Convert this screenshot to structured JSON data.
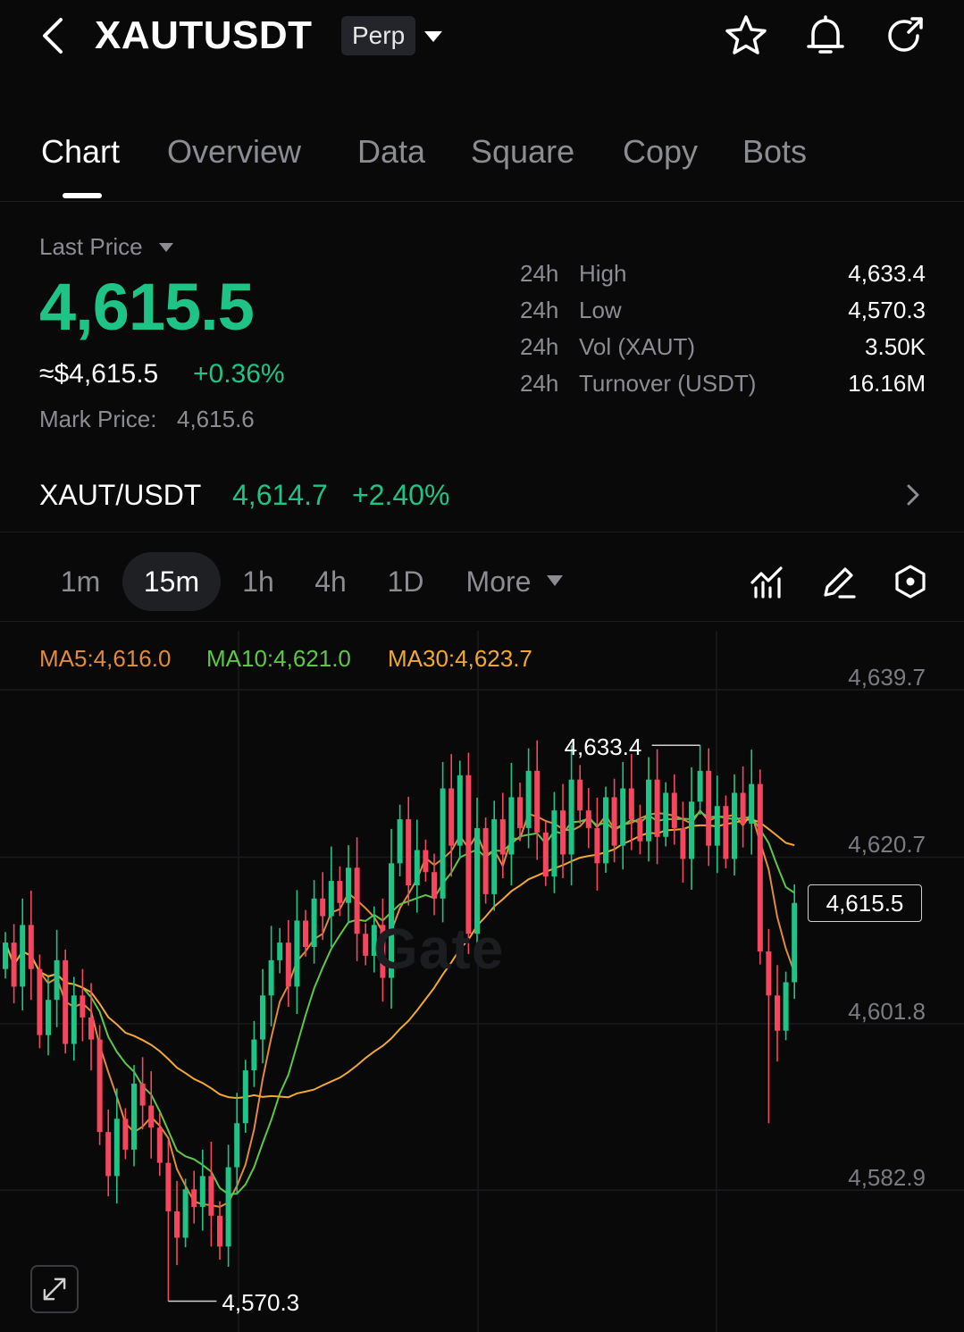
{
  "header": {
    "symbol": "XAUTUSDT",
    "badge": "Perp",
    "icons": [
      "back-icon",
      "chevron-down-icon",
      "star-icon",
      "bell-icon",
      "share-icon"
    ]
  },
  "tabs": [
    {
      "label": "Chart",
      "active": true
    },
    {
      "label": "Overview",
      "active": false
    },
    {
      "label": "Data",
      "active": false
    },
    {
      "label": "Square",
      "active": false
    },
    {
      "label": "Copy",
      "active": false
    },
    {
      "label": "Bots",
      "active": false
    }
  ],
  "price": {
    "label": "Last Price",
    "last": "4,615.5",
    "approx": "≈$4,615.5",
    "change": "+0.36%",
    "mark_label": "Mark Price:",
    "mark_value": "4,615.6"
  },
  "stats": [
    {
      "period": "24h",
      "name": "High",
      "value": "4,633.4"
    },
    {
      "period": "24h",
      "name": "Low",
      "value": "4,570.3"
    },
    {
      "period": "24h",
      "name": "Vol (XAUT)",
      "value": "3.50K"
    },
    {
      "period": "24h",
      "name": "Turnover (USDT)",
      "value": "16.16M"
    }
  ],
  "spot": {
    "symbol": "XAUT/USDT",
    "price": "4,614.7",
    "change": "+2.40%"
  },
  "intervals": [
    {
      "label": "1m",
      "active": false
    },
    {
      "label": "15m",
      "active": true
    },
    {
      "label": "1h",
      "active": false
    },
    {
      "label": "4h",
      "active": false
    },
    {
      "label": "1D",
      "active": false
    },
    {
      "label": "More",
      "active": false
    }
  ],
  "colors": {
    "up": "#1ec485",
    "down": "#f6465d",
    "ma5": "#e08a3c",
    "ma10": "#5ec746",
    "ma30": "#f0a835",
    "background": "#09090a"
  },
  "watermark": "Gate",
  "chart_data": {
    "type": "candlestick",
    "interval": "15m",
    "ma": [
      {
        "name": "MA5",
        "label": "MA5:4,616.0",
        "value": 4616.0
      },
      {
        "name": "MA10",
        "label": "MA10:4,621.0",
        "value": 4621.0
      },
      {
        "name": "MA30",
        "label": "MA30:4,623.7",
        "value": 4623.7
      }
    ],
    "y_ticks": [
      {
        "value": 4639.7,
        "label": "4,639.7"
      },
      {
        "value": 4620.7,
        "label": "4,620.7"
      },
      {
        "value": 4601.8,
        "label": "4,601.8"
      },
      {
        "value": 4582.9,
        "label": "4,582.9"
      }
    ],
    "ylim": [
      4566.8,
      4646.4
    ],
    "last_price": {
      "value": 4615.5,
      "label": "4,615.5"
    },
    "high_marker": {
      "value": 4633.4,
      "label": "4,633.4",
      "index": 81
    },
    "low_marker": {
      "value": 4570.3,
      "label": "4,570.3",
      "index": 19
    },
    "closes": [
      4611.0,
      4606.0,
      4613.0,
      4608.0,
      4600.5,
      4604.5,
      4609.0,
      4599.5,
      4605.0,
      4602.5,
      4600.0,
      4589.5,
      4584.5,
      4591.0,
      4587.5,
      4595.0,
      4592.5,
      4590.0,
      4586.0,
      4580.5,
      4577.5,
      4583.0,
      4581.0,
      4584.5,
      4580.0,
      4576.5,
      4585.5,
      4590.5,
      4596.5,
      4600.0,
      4605.0,
      4609.0,
      4611.0,
      4606.0,
      4613.5,
      4610.5,
      4616.0,
      4614.0,
      4618.0,
      4615.5,
      4619.5,
      4612.0,
      4609.5,
      4613.0,
      4607.0,
      4620.0,
      4625.0,
      4617.5,
      4621.5,
      4619.0,
      4616.0,
      4628.5,
      4622.0,
      4630.0,
      4612.0,
      4624.0,
      4616.5,
      4625.0,
      4621.0,
      4627.5,
      4624.0,
      4630.5,
      4623.5,
      4618.5,
      4626.0,
      4621.0,
      4629.5,
      4626.0,
      4624.0,
      4620.0,
      4627.5,
      4622.0,
      4628.5,
      4625.0,
      4622.5,
      4629.5,
      4623.0,
      4628.0,
      4624.0,
      4620.5,
      4627.0,
      4630.5,
      4622.0,
      4626.5,
      4620.5,
      4628.0,
      4624.5,
      4629.0,
      4610.0,
      4605.0,
      4601.0,
      4606.5,
      4615.5
    ]
  }
}
